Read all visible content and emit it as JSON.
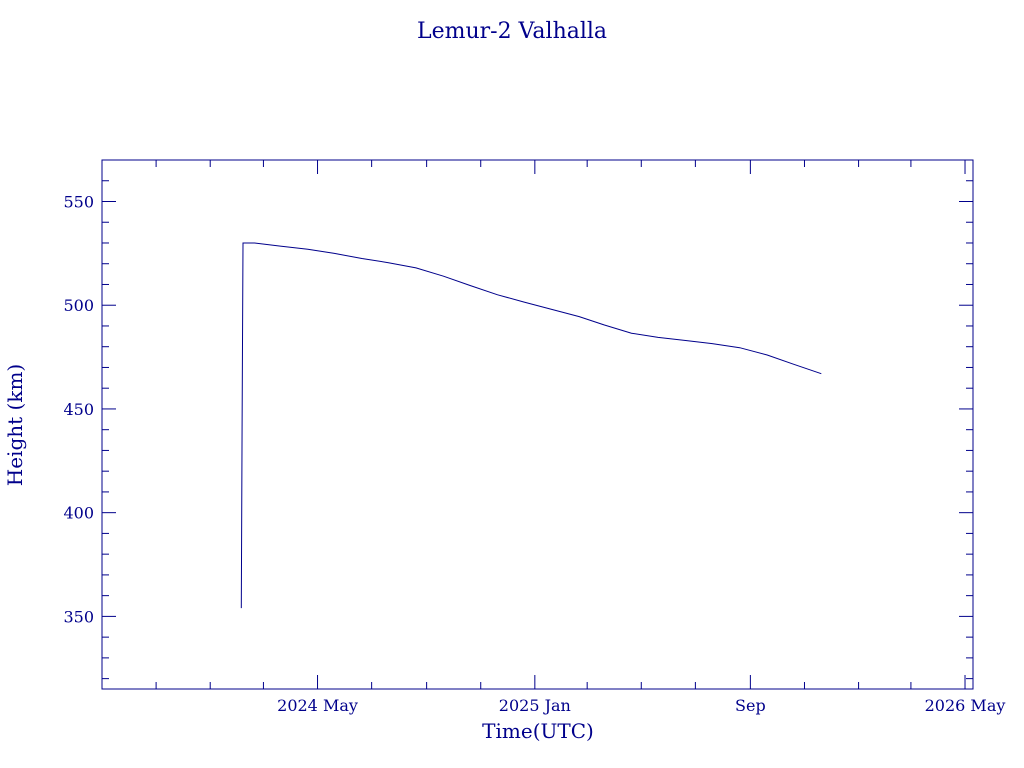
{
  "chart_data": {
    "type": "line",
    "title": "Lemur-2 Valhalla",
    "xlabel": "Time(UTC)",
    "ylabel": "Height (km)",
    "xlim": [
      "2023-09-01",
      "2026-05-10"
    ],
    "ylim": [
      315,
      570
    ],
    "x_ticks": [
      {
        "date": "2024-05-01",
        "label": "2024 May"
      },
      {
        "date": "2025-01-01",
        "label": "2025 Jan"
      },
      {
        "date": "2025-09-01",
        "label": "Sep"
      },
      {
        "date": "2026-05-01",
        "label": "2026 May"
      }
    ],
    "x_minor_ticks": [
      "2023-11-01",
      "2024-01-01",
      "2024-03-01",
      "2024-07-01",
      "2024-09-01",
      "2024-11-01",
      "2025-03-01",
      "2025-05-01",
      "2025-07-01",
      "2025-11-01",
      "2026-01-01",
      "2026-03-01"
    ],
    "y_ticks": [
      350,
      400,
      450,
      500,
      550
    ],
    "y_minor_step": 10,
    "grid": false,
    "colors": {
      "line": "#00008b",
      "text": "#00008b",
      "background": "#ffffff"
    },
    "series": [
      {
        "points": [
          {
            "date": "2024-02-05",
            "y": 354
          },
          {
            "date": "2024-02-06",
            "y": 443
          },
          {
            "date": "2024-02-07",
            "y": 530
          },
          {
            "date": "2024-02-20",
            "y": 530
          },
          {
            "date": "2024-03-20",
            "y": 528.5
          },
          {
            "date": "2024-04-20",
            "y": 527
          },
          {
            "date": "2024-05-20",
            "y": 525
          },
          {
            "date": "2024-06-20",
            "y": 522.5
          },
          {
            "date": "2024-07-20",
            "y": 520.5
          },
          {
            "date": "2024-08-20",
            "y": 518
          },
          {
            "date": "2024-09-20",
            "y": 514
          },
          {
            "date": "2024-10-20",
            "y": 509.5
          },
          {
            "date": "2024-11-20",
            "y": 505
          },
          {
            "date": "2024-12-20",
            "y": 501.5
          },
          {
            "date": "2025-01-20",
            "y": 498
          },
          {
            "date": "2025-02-20",
            "y": 494.5
          },
          {
            "date": "2025-03-20",
            "y": 490.5
          },
          {
            "date": "2025-04-20",
            "y": 486.5
          },
          {
            "date": "2025-05-20",
            "y": 484.5
          },
          {
            "date": "2025-06-20",
            "y": 483
          },
          {
            "date": "2025-07-20",
            "y": 481.5
          },
          {
            "date": "2025-08-20",
            "y": 479.5
          },
          {
            "date": "2025-09-20",
            "y": 476
          },
          {
            "date": "2025-10-20",
            "y": 471.5
          },
          {
            "date": "2025-11-20",
            "y": 467
          }
        ]
      }
    ]
  }
}
